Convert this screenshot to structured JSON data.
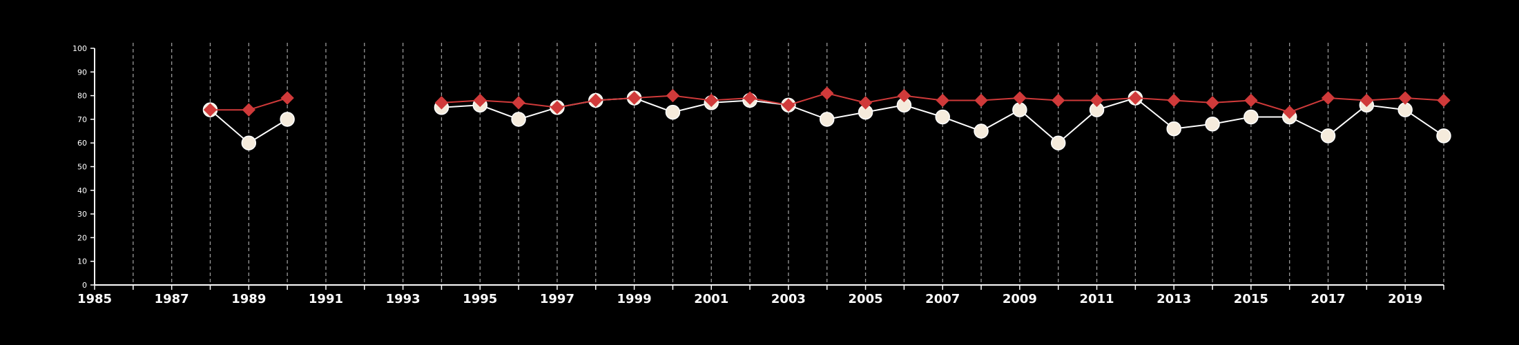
{
  "chart_data": {
    "type": "line",
    "title": "",
    "xlabel": "",
    "ylabel": "",
    "xlim": [
      1985,
      2020
    ],
    "ylim": [
      0,
      100
    ],
    "y_ticks": [
      0,
      10,
      20,
      30,
      40,
      50,
      60,
      70,
      80,
      90,
      100
    ],
    "x_tick_labels": [
      "1985",
      "1987",
      "1989",
      "1991",
      "1993",
      "1995",
      "1997",
      "1999",
      "2001",
      "2003",
      "2005",
      "2007",
      "2009",
      "2011",
      "2013",
      "2015",
      "2017",
      "2019"
    ],
    "grid": "vertical dashed lines at each year",
    "legend": "none",
    "x": [
      1988,
      1989,
      1990,
      1994,
      1995,
      1996,
      1997,
      1998,
      1999,
      2000,
      2001,
      2002,
      2003,
      2004,
      2005,
      2006,
      2007,
      2008,
      2009,
      2010,
      2011,
      2012,
      2013,
      2014,
      2015,
      2016,
      2017,
      2018,
      2019,
      2020
    ],
    "series": [
      {
        "marker": "diamond",
        "color": "#d03a3a",
        "values": [
          74,
          74,
          79,
          77,
          78,
          77,
          75,
          78,
          79,
          80,
          78,
          79,
          76,
          81,
          77,
          80,
          78,
          78,
          79,
          78,
          78,
          79,
          78,
          77,
          78,
          73,
          79,
          78,
          79,
          78
        ]
      },
      {
        "marker": "circle",
        "color": "#ffffff",
        "marker_fill": "#f5ebdc",
        "values": [
          74,
          60,
          70,
          75,
          76,
          70,
          75,
          78,
          79,
          73,
          77,
          78,
          76,
          70,
          73,
          76,
          71,
          65,
          74,
          60,
          74,
          79,
          66,
          68,
          71,
          71,
          63,
          76,
          74,
          63
        ]
      }
    ],
    "segment_breaks_after": [
      1990
    ]
  }
}
